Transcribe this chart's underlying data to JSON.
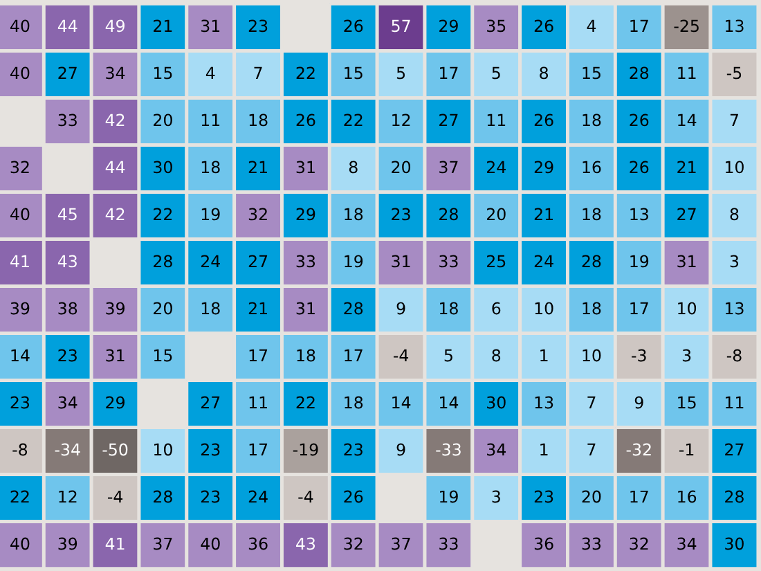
{
  "chart_data": {
    "type": "heatmap",
    "categories": [
      null,
      null,
      null,
      null,
      null,
      null,
      null,
      null,
      null,
      null,
      null,
      null,
      null,
      null,
      null,
      null
    ],
    "y_categories": [
      null,
      null,
      null,
      null,
      null,
      null,
      null,
      null,
      null,
      null,
      null,
      null
    ],
    "data_labels": true,
    "cells": [
      [
        40,
        44,
        49,
        21,
        31,
        23,
        null,
        26,
        57,
        29,
        35,
        26,
        4,
        17,
        -25,
        13
      ],
      [
        40,
        27,
        34,
        15,
        4,
        7,
        22,
        15,
        5,
        17,
        5,
        8,
        15,
        28,
        11,
        -5
      ],
      [
        null,
        33,
        42,
        20,
        11,
        18,
        26,
        22,
        12,
        27,
        11,
        26,
        18,
        26,
        14,
        7
      ],
      [
        32,
        null,
        44,
        30,
        18,
        21,
        31,
        8,
        20,
        37,
        24,
        29,
        16,
        26,
        21,
        10
      ],
      [
        40,
        45,
        42,
        22,
        19,
        32,
        29,
        18,
        23,
        28,
        20,
        21,
        18,
        13,
        27,
        8
      ],
      [
        41,
        43,
        null,
        28,
        24,
        27,
        33,
        19,
        31,
        33,
        25,
        24,
        28,
        19,
        31,
        3
      ],
      [
        39,
        38,
        39,
        20,
        18,
        21,
        31,
        28,
        9,
        18,
        6,
        10,
        18,
        17,
        10,
        13
      ],
      [
        14,
        23,
        31,
        15,
        null,
        17,
        18,
        17,
        -4,
        5,
        8,
        1,
        10,
        -3,
        3,
        -8
      ],
      [
        23,
        34,
        29,
        null,
        27,
        11,
        22,
        18,
        14,
        14,
        30,
        13,
        7,
        9,
        15,
        11
      ],
      [
        -8,
        -34,
        -50,
        10,
        23,
        17,
        -19,
        23,
        9,
        -33,
        34,
        1,
        7,
        -32,
        -1,
        27
      ],
      [
        22,
        12,
        -4,
        28,
        23,
        24,
        -4,
        26,
        null,
        19,
        3,
        23,
        20,
        17,
        16,
        28
      ],
      [
        40,
        39,
        41,
        37,
        40,
        36,
        43,
        32,
        37,
        33,
        null,
        36,
        33,
        32,
        34,
        30
      ]
    ],
    "colors": [
      [
        "#a78bc3",
        "#8a66ad",
        "#8a66ad",
        "#00a0dc",
        "#a78bc3",
        "#00a0dc",
        null,
        "#00a0dc",
        "#6c3d8e",
        "#00a0dc",
        "#a78bc3",
        "#00a0dc",
        "#a7dcf5",
        "#6fc5ec",
        "#9c928e",
        "#6fc5ec"
      ],
      [
        "#a78bc3",
        "#00a0dc",
        "#a78bc3",
        "#6fc5ec",
        "#a7dcf5",
        "#a7dcf5",
        "#00a0dc",
        "#6fc5ec",
        "#a7dcf5",
        "#6fc5ec",
        "#a7dcf5",
        "#a7dcf5",
        "#6fc5ec",
        "#00a0dc",
        "#6fc5ec",
        "#cec6c2"
      ],
      [
        null,
        "#a78bc3",
        "#8a66ad",
        "#6fc5ec",
        "#6fc5ec",
        "#6fc5ec",
        "#00a0dc",
        "#00a0dc",
        "#6fc5ec",
        "#00a0dc",
        "#6fc5ec",
        "#00a0dc",
        "#6fc5ec",
        "#00a0dc",
        "#6fc5ec",
        "#a7dcf5"
      ],
      [
        "#a78bc3",
        null,
        "#8a66ad",
        "#00a0dc",
        "#6fc5ec",
        "#00a0dc",
        "#a78bc3",
        "#a7dcf5",
        "#6fc5ec",
        "#a78bc3",
        "#00a0dc",
        "#00a0dc",
        "#6fc5ec",
        "#00a0dc",
        "#00a0dc",
        "#a7dcf5"
      ],
      [
        "#a78bc3",
        "#8a66ad",
        "#8a66ad",
        "#00a0dc",
        "#6fc5ec",
        "#a78bc3",
        "#00a0dc",
        "#6fc5ec",
        "#00a0dc",
        "#00a0dc",
        "#6fc5ec",
        "#00a0dc",
        "#6fc5ec",
        "#6fc5ec",
        "#00a0dc",
        "#a7dcf5"
      ],
      [
        "#8a66ad",
        "#8a66ad",
        null,
        "#00a0dc",
        "#00a0dc",
        "#00a0dc",
        "#a78bc3",
        "#6fc5ec",
        "#a78bc3",
        "#a78bc3",
        "#00a0dc",
        "#00a0dc",
        "#00a0dc",
        "#6fc5ec",
        "#a78bc3",
        "#a7dcf5"
      ],
      [
        "#a78bc3",
        "#a78bc3",
        "#a78bc3",
        "#6fc5ec",
        "#6fc5ec",
        "#00a0dc",
        "#a78bc3",
        "#00a0dc",
        "#a7dcf5",
        "#6fc5ec",
        "#a7dcf5",
        "#a7dcf5",
        "#6fc5ec",
        "#6fc5ec",
        "#a7dcf5",
        "#6fc5ec"
      ],
      [
        "#6fc5ec",
        "#00a0dc",
        "#a78bc3",
        "#6fc5ec",
        null,
        "#6fc5ec",
        "#6fc5ec",
        "#6fc5ec",
        "#cec6c2",
        "#a7dcf5",
        "#a7dcf5",
        "#a7dcf5",
        "#a7dcf5",
        "#cec6c2",
        "#a7dcf5",
        "#cec6c2"
      ],
      [
        "#00a0dc",
        "#a78bc3",
        "#00a0dc",
        null,
        "#00a0dc",
        "#6fc5ec",
        "#00a0dc",
        "#6fc5ec",
        "#6fc5ec",
        "#6fc5ec",
        "#00a0dc",
        "#6fc5ec",
        "#a7dcf5",
        "#a7dcf5",
        "#6fc5ec",
        "#6fc5ec"
      ],
      [
        "#cec6c2",
        "#857a77",
        "#6f6764",
        "#a7dcf5",
        "#00a0dc",
        "#6fc5ec",
        "#aaa19d",
        "#00a0dc",
        "#a7dcf5",
        "#857a77",
        "#a78bc3",
        "#a7dcf5",
        "#a7dcf5",
        "#857a77",
        "#cec6c2",
        "#00a0dc"
      ],
      [
        "#00a0dc",
        "#6fc5ec",
        "#cec6c2",
        "#00a0dc",
        "#00a0dc",
        "#00a0dc",
        "#cec6c2",
        "#00a0dc",
        null,
        "#6fc5ec",
        "#a7dcf5",
        "#00a0dc",
        "#6fc5ec",
        "#6fc5ec",
        "#6fc5ec",
        "#00a0dc"
      ],
      [
        "#a78bc3",
        "#a78bc3",
        "#8a66ad",
        "#a78bc3",
        "#a78bc3",
        "#a78bc3",
        "#8a66ad",
        "#a78bc3",
        "#a78bc3",
        "#a78bc3",
        null,
        "#a78bc3",
        "#a78bc3",
        "#a78bc3",
        "#a78bc3",
        "#00a0dc"
      ]
    ]
  }
}
